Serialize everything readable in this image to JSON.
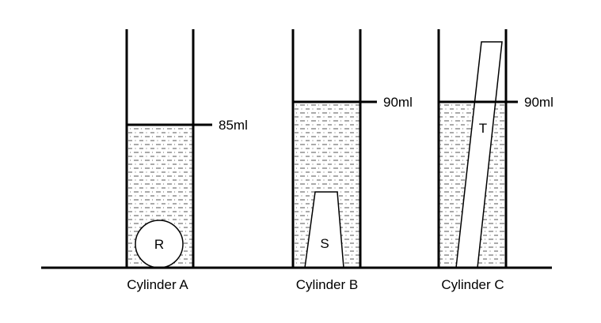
{
  "cylinders": [
    {
      "name": "Cylinder A",
      "level_label": "85ml",
      "object_label": "R",
      "object_shape": "sphere"
    },
    {
      "name": "Cylinder B",
      "level_label": "90ml",
      "object_label": "S",
      "object_shape": "truncated-cone"
    },
    {
      "name": "Cylinder C",
      "level_label": "90ml",
      "object_label": "T",
      "object_shape": "tilted-rod"
    }
  ]
}
